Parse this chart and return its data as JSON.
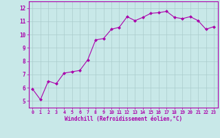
{
  "x": [
    0,
    1,
    2,
    3,
    4,
    5,
    6,
    7,
    8,
    9,
    10,
    11,
    12,
    13,
    14,
    15,
    16,
    17,
    18,
    19,
    20,
    21,
    22,
    23
  ],
  "y": [
    5.9,
    5.1,
    6.5,
    6.3,
    7.1,
    7.2,
    7.3,
    8.1,
    9.6,
    9.7,
    10.4,
    10.55,
    11.35,
    11.05,
    11.3,
    11.6,
    11.65,
    11.75,
    11.3,
    11.2,
    11.35,
    11.05,
    10.4,
    10.6
  ],
  "line_color": "#aa00aa",
  "marker": "D",
  "marker_size": 2.0,
  "bg_color": "#c8e8e8",
  "grid_color": "#aacccc",
  "xlabel": "Windchill (Refroidissement éolien,°C)",
  "tick_color": "#aa00aa",
  "ylim": [
    4.5,
    12.5
  ],
  "xlim": [
    -0.5,
    23.5
  ],
  "yticks": [
    5,
    6,
    7,
    8,
    9,
    10,
    11,
    12
  ],
  "xticks": [
    0,
    1,
    2,
    3,
    4,
    5,
    6,
    7,
    8,
    9,
    10,
    11,
    12,
    13,
    14,
    15,
    16,
    17,
    18,
    19,
    20,
    21,
    22,
    23
  ],
  "spine_color": "#aa00aa",
  "font_size_x": 4.8,
  "font_size_y": 5.5,
  "xlabel_size": 5.5
}
